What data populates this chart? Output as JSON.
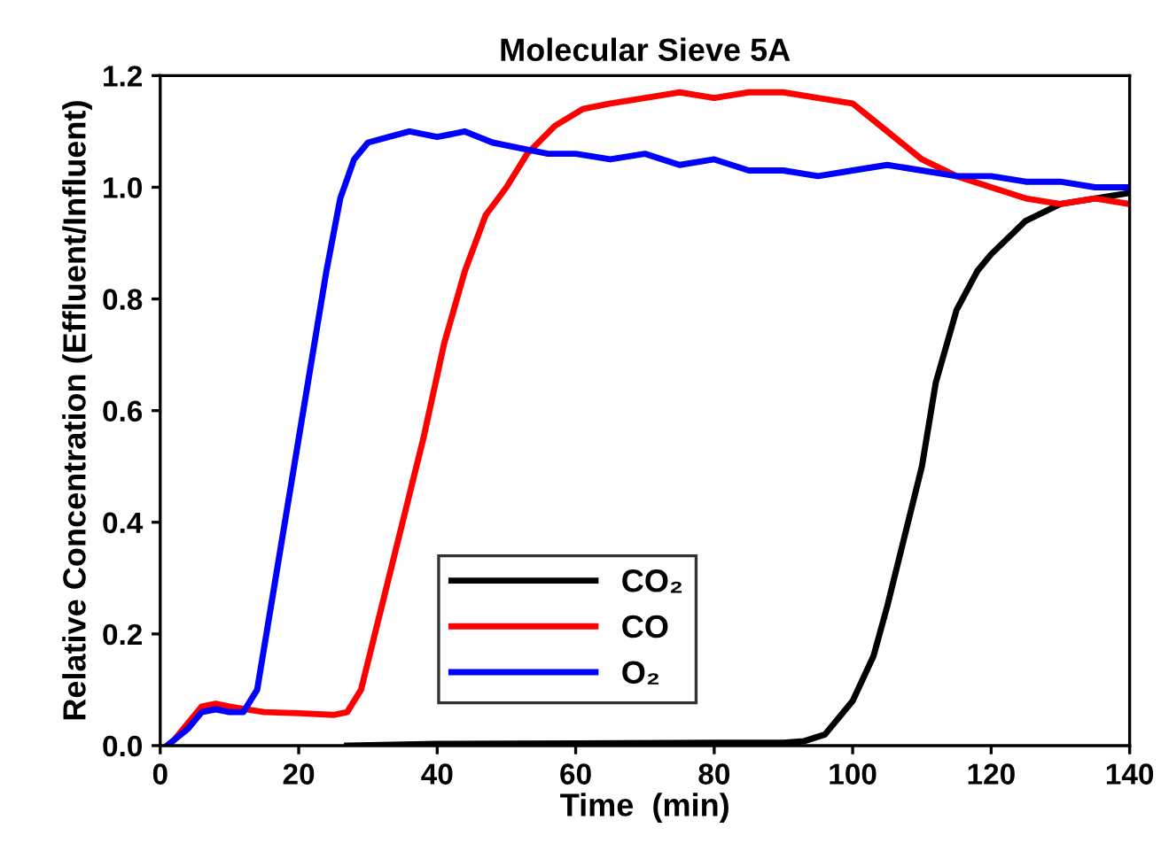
{
  "chart_data": {
    "type": "line",
    "title": "Molecular Sieve 5A",
    "xlabel": "Time  (min)",
    "ylabel": "Relative Concentration (Effluent/Influent)",
    "xlim": [
      0,
      140
    ],
    "xticks": [
      0,
      20,
      40,
      60,
      80,
      100,
      120,
      140
    ],
    "ylim": [
      0,
      1.2
    ],
    "yticks": [
      {
        "value": 0,
        "label": "0.0"
      },
      {
        "value": 0.2,
        "label": "0.2"
      },
      {
        "value": 0.4,
        "label": "0.4"
      },
      {
        "value": 0.6,
        "label": "0.6"
      },
      {
        "value": 0.8,
        "label": "0.8"
      },
      {
        "value": 1.0,
        "label": "1.0"
      },
      {
        "value": 1.2,
        "label": "1.2"
      }
    ],
    "grid": false,
    "legend": "bottom",
    "marker": "none",
    "line_style": "solid",
    "series": [
      {
        "name": "CO₂",
        "color": "#000000",
        "x": [
          27,
          40,
          60,
          80,
          90,
          93,
          96,
          100,
          103,
          105,
          108,
          110,
          112,
          115,
          118,
          120,
          125,
          130,
          135,
          140
        ],
        "values": [
          0,
          0.003,
          0.004,
          0.005,
          0.005,
          0.008,
          0.02,
          0.08,
          0.16,
          0.25,
          0.4,
          0.5,
          0.65,
          0.78,
          0.85,
          0.88,
          0.94,
          0.97,
          0.98,
          0.99
        ]
      },
      {
        "name": "CO",
        "color": "#ff0000",
        "x": [
          1,
          2,
          4,
          6,
          8,
          10,
          15,
          20,
          25,
          27,
          29,
          31,
          33,
          35,
          38,
          41,
          44,
          47,
          50,
          53,
          57,
          61,
          65,
          70,
          75,
          80,
          85,
          90,
          95,
          100,
          103,
          106,
          110,
          115,
          120,
          125,
          130,
          135,
          140
        ],
        "values": [
          0,
          0.01,
          0.04,
          0.07,
          0.075,
          0.07,
          0.06,
          0.058,
          0.055,
          0.06,
          0.1,
          0.2,
          0.3,
          0.4,
          0.55,
          0.72,
          0.85,
          0.95,
          1.0,
          1.06,
          1.11,
          1.14,
          1.15,
          1.16,
          1.17,
          1.16,
          1.17,
          1.17,
          1.16,
          1.15,
          1.12,
          1.09,
          1.05,
          1.02,
          1.0,
          0.98,
          0.97,
          0.98,
          0.97
        ]
      },
      {
        "name": "O₂",
        "color": "#0000ff",
        "x": [
          1,
          2,
          4,
          6,
          8,
          10,
          12,
          14,
          16,
          18,
          20,
          22,
          24,
          26,
          28,
          30,
          33,
          36,
          40,
          44,
          48,
          52,
          56,
          60,
          65,
          70,
          75,
          80,
          85,
          90,
          95,
          100,
          105,
          110,
          115,
          120,
          125,
          130,
          135,
          140
        ],
        "values": [
          0,
          0.01,
          0.03,
          0.06,
          0.065,
          0.06,
          0.06,
          0.1,
          0.25,
          0.4,
          0.55,
          0.7,
          0.85,
          0.98,
          1.05,
          1.08,
          1.09,
          1.1,
          1.09,
          1.1,
          1.08,
          1.07,
          1.06,
          1.06,
          1.05,
          1.06,
          1.04,
          1.05,
          1.03,
          1.03,
          1.02,
          1.03,
          1.04,
          1.03,
          1.02,
          1.02,
          1.01,
          1.01,
          1.0,
          1.0
        ]
      }
    ]
  }
}
